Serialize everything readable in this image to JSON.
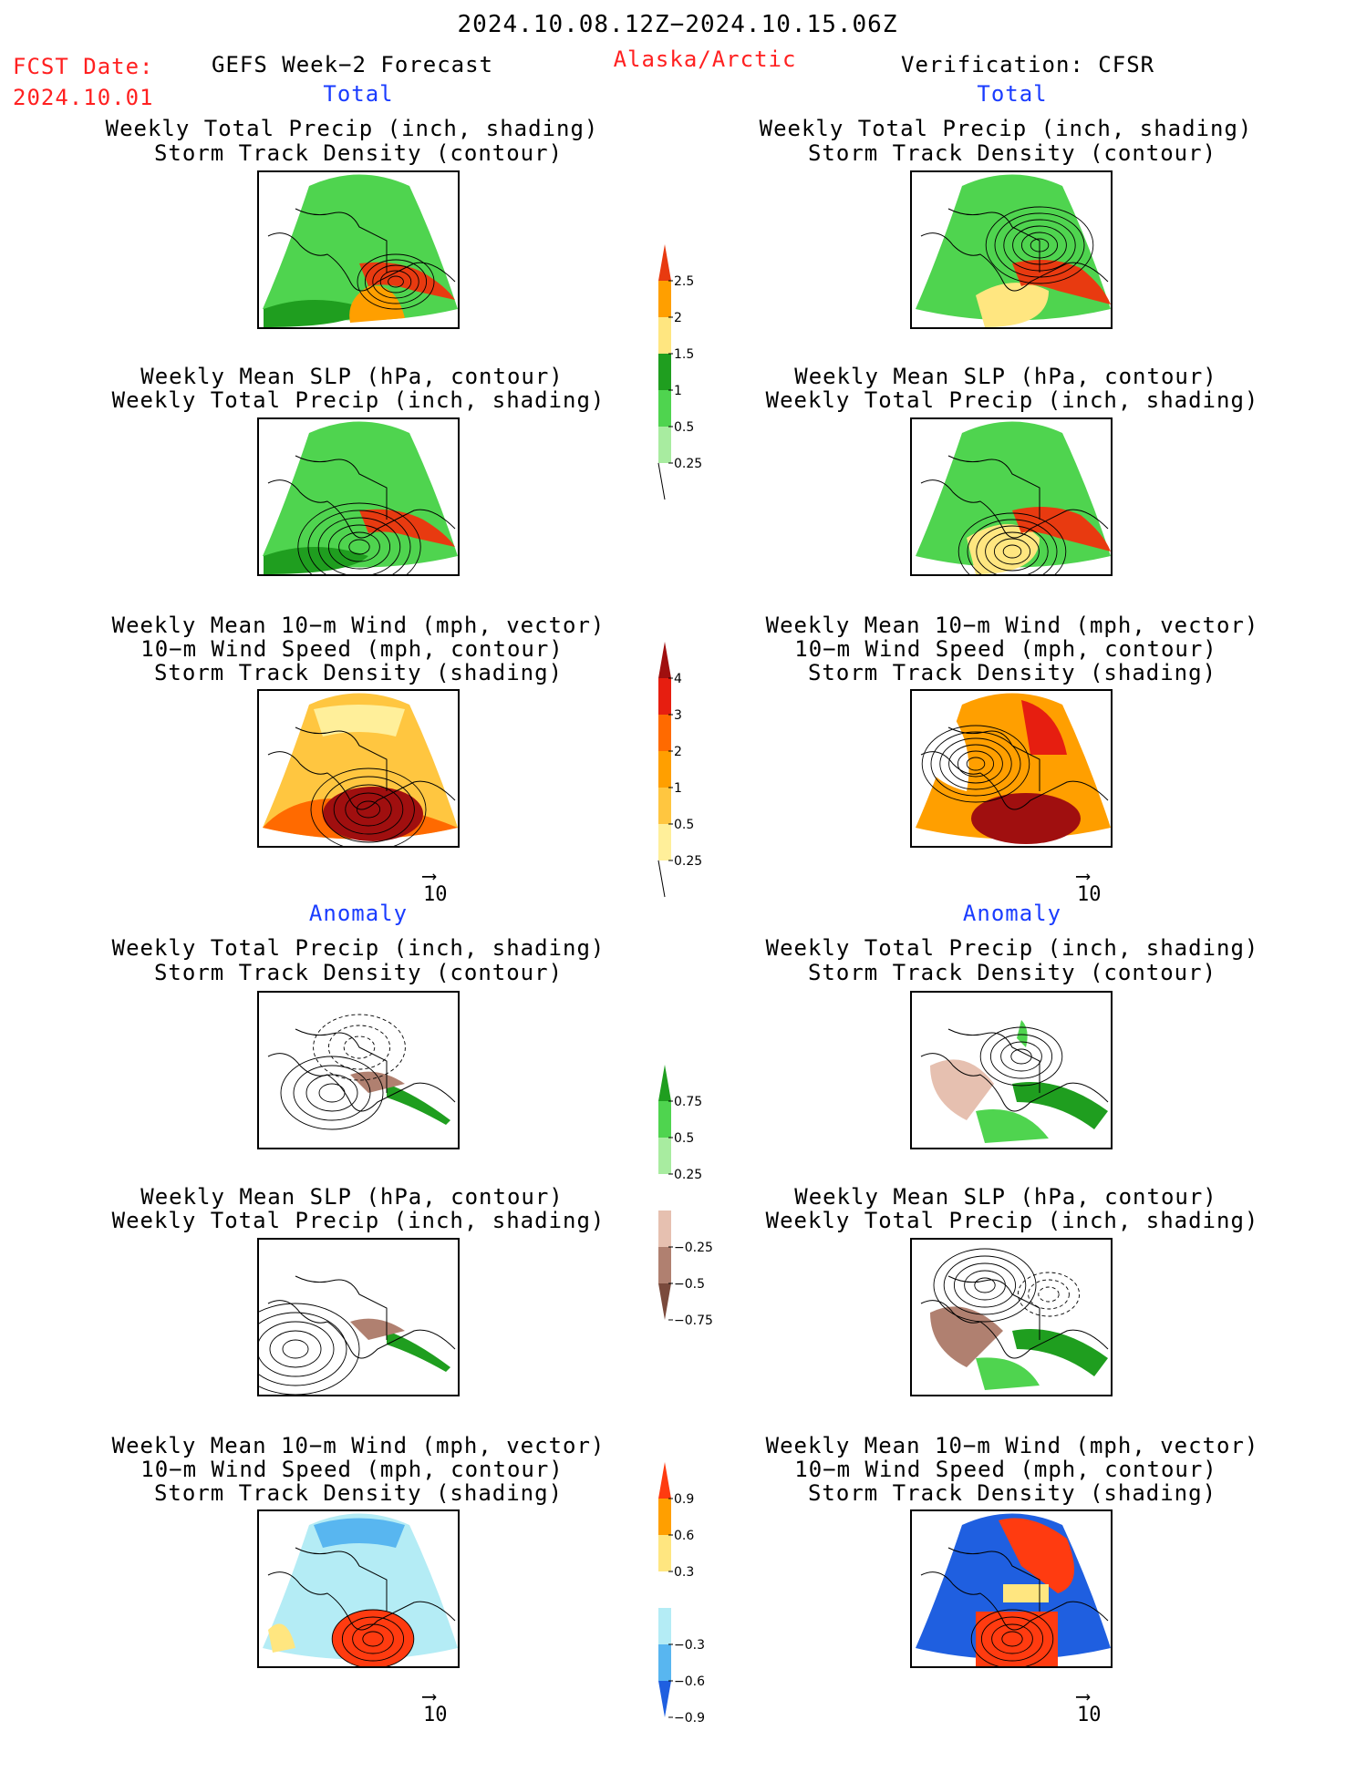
{
  "header": {
    "date_range": "2024.10.08.12Z−2024.10.15.06Z",
    "fcst_label": "FCST Date:",
    "fcst_date": "2024.10.01",
    "product": "GEFS Week−2 Forecast",
    "region": "Alaska/Arctic",
    "verification": "Verification: CFSR"
  },
  "sections": {
    "total": "Total",
    "anomaly": "Anomaly"
  },
  "panel_titles": {
    "precip_track": [
      "Weekly Total Precip (inch, shading)",
      "Storm Track Density (contour)"
    ],
    "slp_precip": [
      "Weekly Mean SLP (hPa, contour)",
      "Weekly Total Precip (inch, shading)"
    ],
    "wind_track": [
      "Weekly Mean 10−m Wind (mph, vector)",
      "10−m Wind Speed (mph, contour)",
      "Storm Track Density (shading)"
    ]
  },
  "vector_ref": "10",
  "colorbars": {
    "precip_total": {
      "labels": [
        "2.5",
        "2",
        "1.5",
        "1",
        "0.5",
        "0.25"
      ],
      "colors": [
        "#e83a10",
        "#ff9f00",
        "#ffe680",
        "#1f9e1f",
        "#4fd44f",
        "#a8eca0"
      ]
    },
    "track_total": {
      "labels": [
        "4",
        "3",
        "2",
        "1",
        "0.5",
        "0.25"
      ],
      "colors": [
        "#a00f0f",
        "#e61e10",
        "#ff6a00",
        "#ff9f00",
        "#ffc640",
        "#ffef9a"
      ]
    },
    "precip_anom": {
      "labels": [
        "0.75",
        "0.5",
        "0.25",
        "−0.25",
        "−0.5",
        "−0.75"
      ],
      "colors": [
        "#1f9e1f",
        "#4fd44f",
        "#a8eca0",
        "#ffffff",
        "#e6c0b0",
        "#b08070",
        "#7a4a3c"
      ]
    },
    "track_anom": {
      "labels": [
        "0.9",
        "0.6",
        "0.3",
        "−0.3",
        "−0.6",
        "−0.9"
      ],
      "colors": [
        "#ff3b10",
        "#ff9f00",
        "#ffe680",
        "#ffffff",
        "#b4ecf5",
        "#58b6f0",
        "#1f5fe0"
      ]
    }
  }
}
